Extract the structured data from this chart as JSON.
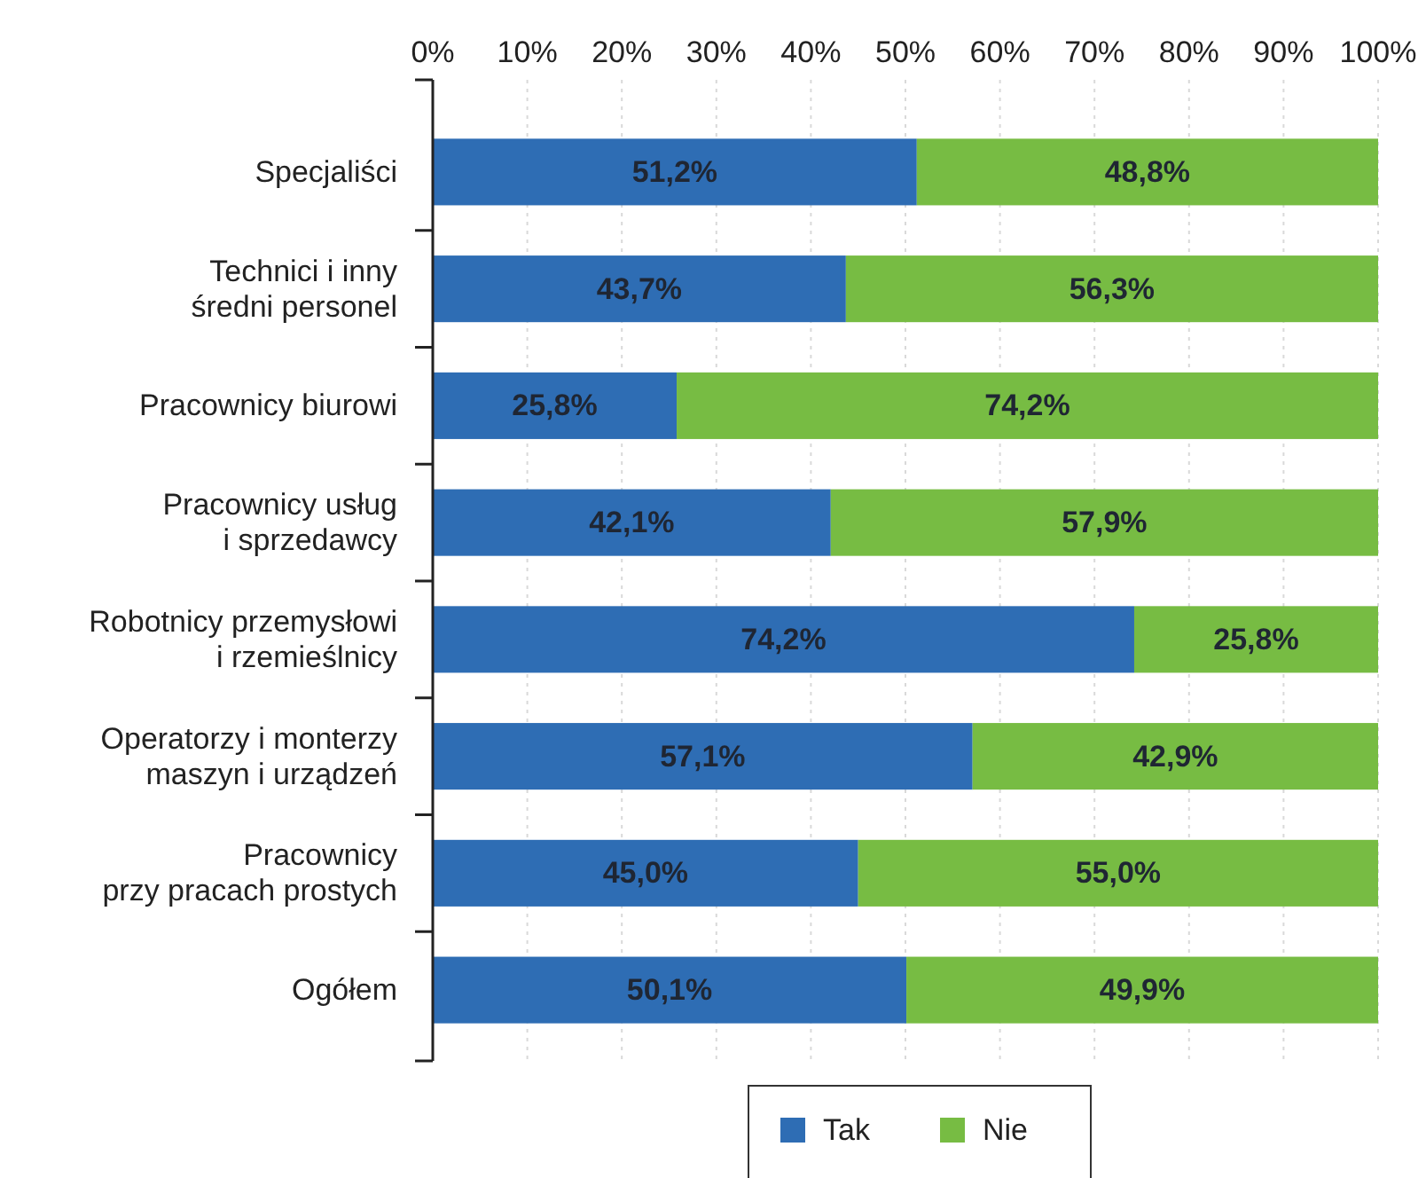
{
  "chart_data": {
    "type": "bar",
    "orientation": "horizontal",
    "stacked": true,
    "categories": [
      "Specjaliści",
      "Technici i inny\nśredni personel",
      "Pracownicy biurowi",
      "Pracownicy usług\ni sprzedawcy",
      "Robotnicy przemysłowi\ni rzemieślnicy",
      "Operatorzy i monterzy\nmaszyn i urządzeń",
      "Pracownicy\nprzy pracach prostych",
      "Ogółem"
    ],
    "series": [
      {
        "name": "Tak",
        "color": "#2e6db4",
        "values": [
          51.2,
          43.7,
          25.8,
          42.1,
          74.2,
          57.1,
          45.0,
          50.1
        ],
        "value_labels": [
          "51,2%",
          "43,7%",
          "25,8%",
          "42,1%",
          "74,2%",
          "57,1%",
          "45,0%",
          "50,1%"
        ]
      },
      {
        "name": "Nie",
        "color": "#77bc43",
        "values": [
          48.8,
          56.3,
          74.2,
          57.9,
          25.8,
          42.9,
          55.0,
          49.9
        ],
        "value_labels": [
          "48,8%",
          "56,3%",
          "74,2%",
          "57,9%",
          "25,8%",
          "42,9%",
          "55,0%",
          "49,9%"
        ]
      }
    ],
    "xlim": [
      0,
      100
    ],
    "xticks": [
      {
        "value": 0,
        "label": "0%"
      },
      {
        "value": 10,
        "label": "10%"
      },
      {
        "value": 20,
        "label": "20%"
      },
      {
        "value": 30,
        "label": "30%"
      },
      {
        "value": 40,
        "label": "40%"
      },
      {
        "value": 50,
        "label": "50%"
      },
      {
        "value": 60,
        "label": "60%"
      },
      {
        "value": 70,
        "label": "70%"
      },
      {
        "value": 80,
        "label": "80%"
      },
      {
        "value": 90,
        "label": "90%"
      },
      {
        "value": 100,
        "label": "100%"
      }
    ],
    "grid": "x",
    "legend": "bottom"
  }
}
